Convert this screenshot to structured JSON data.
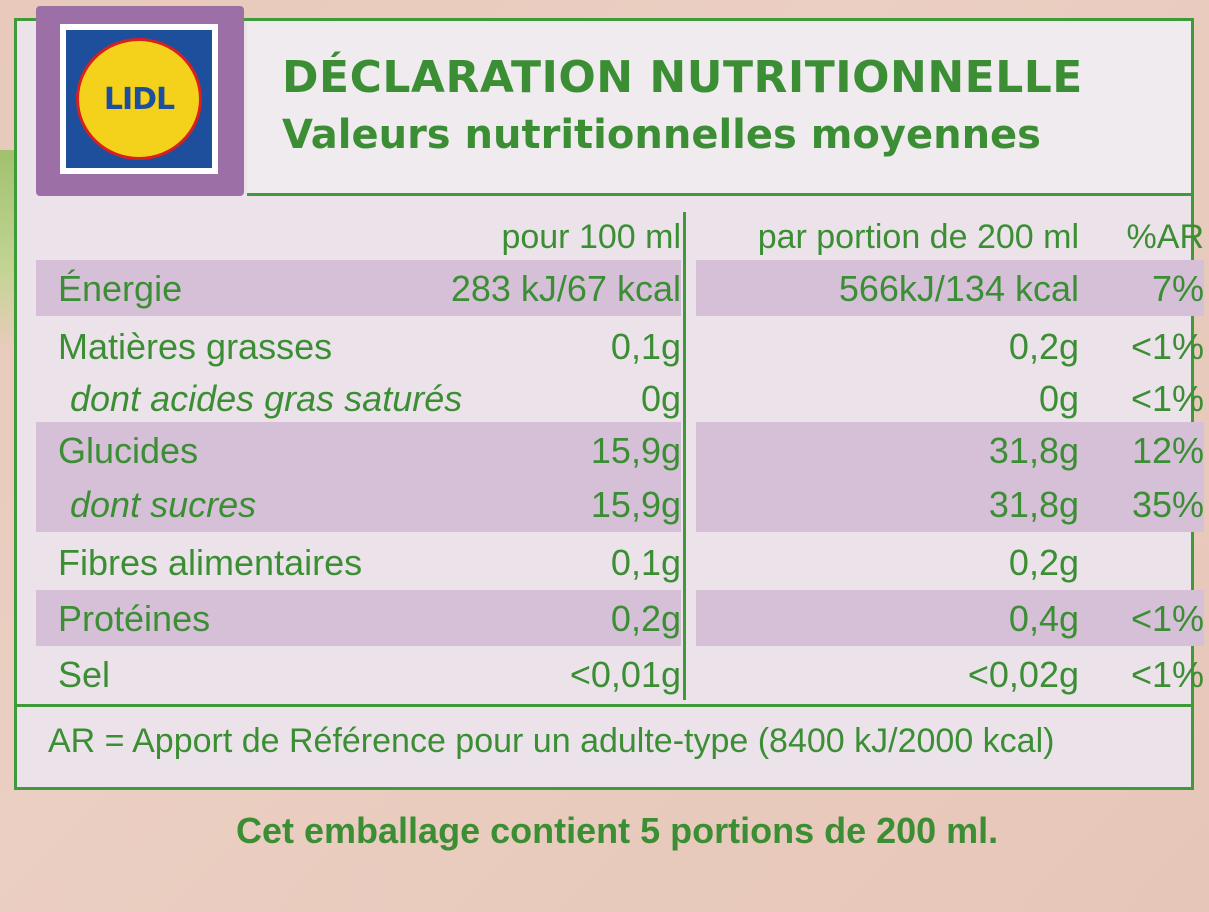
{
  "logo": {
    "text": "LIDL"
  },
  "header": {
    "title": "DÉCLARATION NUTRITIONNELLE",
    "subtitle": "Valeurs nutritionnelles moyennes"
  },
  "columns": {
    "per100": "pour 100 ml",
    "perPortion": "par portion de 200 ml",
    "ar": "%AR"
  },
  "rows": [
    {
      "name": "Énergie",
      "per100": "283 kJ/67 kcal",
      "perPortion": "566kJ/134 kcal",
      "ar": "7%",
      "sub": false,
      "shade": true
    },
    {
      "name": "Matières grasses",
      "per100": "0,1g",
      "perPortion": "0,2g",
      "ar": "<1%",
      "sub": false,
      "shade": false
    },
    {
      "name": "dont acides gras saturés",
      "per100": "0g",
      "perPortion": "0g",
      "ar": "<1%",
      "sub": true,
      "shade": false
    },
    {
      "name": "Glucides",
      "per100": "15,9g",
      "perPortion": "31,8g",
      "ar": "12%",
      "sub": false,
      "shade": true
    },
    {
      "name": "dont sucres",
      "per100": "15,9g",
      "perPortion": "31,8g",
      "ar": "35%",
      "sub": true,
      "shade": true
    },
    {
      "name": "Fibres alimentaires",
      "per100": "0,1g",
      "perPortion": "0,2g",
      "ar": "",
      "sub": false,
      "shade": false
    },
    {
      "name": "Protéines",
      "per100": "0,2g",
      "perPortion": "0,4g",
      "ar": "<1%",
      "sub": false,
      "shade": true
    },
    {
      "name": "Sel",
      "per100": "<0,01g",
      "perPortion": "<0,02g",
      "ar": "<1%",
      "sub": false,
      "shade": false
    }
  ],
  "footnote": "AR = Apport de Référence pour un adulte-type (8400 kJ/2000 kcal)",
  "packaging_note": "Cet emballage contient 5 portions de 200 ml.",
  "colors": {
    "green": "#3c8e35",
    "purple_band": "#d6c0d8",
    "logo_frame": "#9c6fa6"
  }
}
